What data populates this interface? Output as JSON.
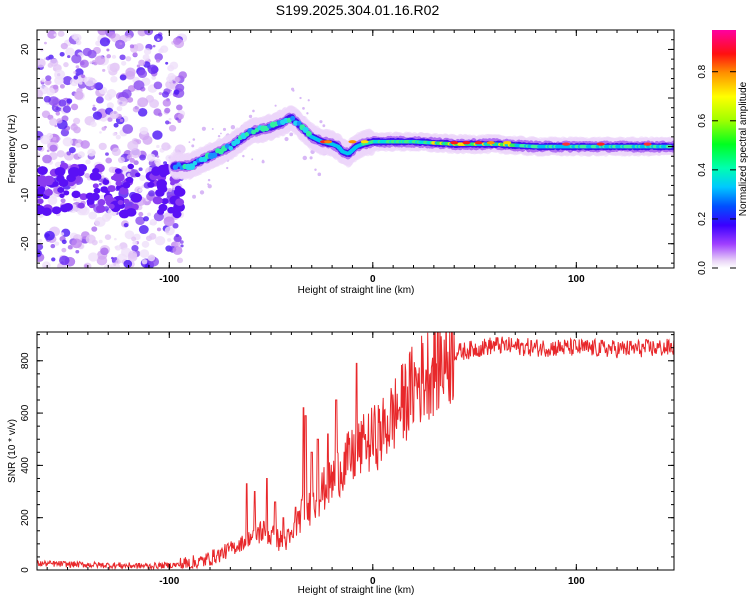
{
  "chart_data": [
    {
      "type": "heatmap",
      "title": "S199.2025.304.01.16.R02",
      "xlabel": "Height of straight line (km)",
      "ylabel": "Frequency (Hz)",
      "xlim": [
        -165,
        148
      ],
      "ylim": [
        -25,
        24
      ],
      "xticks": [
        -100,
        0,
        100
      ],
      "xtick_labels": [
        "-100",
        "0",
        "100"
      ],
      "yticks": [
        -20,
        -10,
        0,
        10,
        20
      ],
      "ytick_labels": [
        "-20",
        "-10",
        "0",
        "10",
        "20"
      ],
      "ridge": {
        "description": "peak frequency vs height",
        "x": [
          -98,
          -90,
          -80,
          -70,
          -60,
          -50,
          -44,
          -40,
          -35,
          -30,
          -25,
          -20,
          -17,
          -15,
          -12,
          -8,
          -5,
          0,
          10,
          20,
          40,
          60,
          80,
          100,
          120,
          148
        ],
        "y": [
          -4,
          -4,
          -2,
          0,
          3,
          4,
          5,
          6,
          4,
          2,
          1,
          0.5,
          0,
          -1,
          -1.5,
          0,
          0.5,
          1,
          1,
          1,
          0.5,
          0.5,
          0,
          0,
          0,
          0
        ]
      },
      "colorbar": {
        "label": "Normalized spectral amplitude",
        "range": [
          0,
          0.97
        ],
        "ticks": [
          0.0,
          0.2,
          0.4,
          0.6,
          0.8
        ],
        "tick_labels": [
          "0.0",
          "0.2",
          "0.4",
          "0.6",
          "0.8"
        ]
      }
    },
    {
      "type": "line",
      "xlabel": "Height of straight line (km)",
      "ylabel": "SNR (10 * v/v)",
      "xlim": [
        -165,
        148
      ],
      "ylim": [
        0,
        910
      ],
      "xticks": [
        -100,
        0,
        100
      ],
      "xtick_labels": [
        "-100",
        "0",
        "100"
      ],
      "yticks": [
        0,
        200,
        400,
        600,
        800
      ],
      "ytick_labels": [
        "0",
        "200",
        "400",
        "600",
        "800"
      ],
      "color": "#e8282b",
      "trend": {
        "x": [
          -165,
          -140,
          -110,
          -95,
          -85,
          -75,
          -65,
          -55,
          -50,
          -45,
          -40,
          -35,
          -30,
          -25,
          -20,
          -15,
          -10,
          -5,
          0,
          5,
          10,
          15,
          20,
          25,
          30,
          40,
          50,
          60,
          80,
          100,
          120,
          148
        ],
        "y": [
          25,
          20,
          15,
          20,
          30,
          60,
          100,
          150,
          130,
          110,
          120,
          220,
          240,
          300,
          340,
          400,
          430,
          470,
          500,
          530,
          590,
          640,
          700,
          740,
          780,
          830,
          845,
          860,
          850,
          850,
          845,
          850
        ]
      },
      "spikes": {
        "x": [
          -62,
          -58,
          -52,
          -48,
          -44,
          -38,
          -34,
          -33,
          -30,
          -27,
          -22,
          -18,
          -8,
          -4
        ],
        "y": [
          330,
          300,
          350,
          260,
          200,
          240,
          620,
          590,
          450,
          500,
          520,
          650,
          790,
          500
        ]
      }
    }
  ]
}
